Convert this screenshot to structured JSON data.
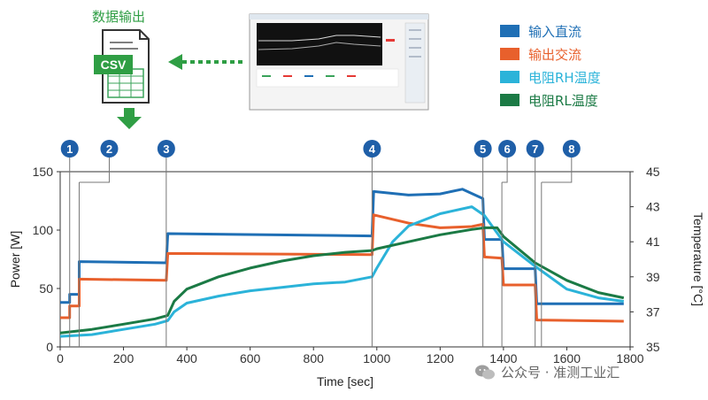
{
  "header": {
    "export_label": "数据输出",
    "csv_label": "CSV"
  },
  "legend": [
    {
      "label": "输入直流",
      "color": "#1f6fb5"
    },
    {
      "label": "输出交流",
      "color": "#e8602c"
    },
    {
      "label": "电阻RH温度",
      "color": "#2bb3d9"
    },
    {
      "label": "电阻RL温度",
      "color": "#1b7a45"
    }
  ],
  "watermark": "公众号 · 准测工业汇",
  "chart_data": {
    "type": "line",
    "xlabel": "Time [sec]",
    "ylabel_left": "Power [W]",
    "ylabel_right": "Temperature [°C]",
    "xlim": [
      0,
      1800
    ],
    "ylim_left": [
      0,
      150
    ],
    "ylim_right": [
      35,
      45
    ],
    "x_ticks": [
      0,
      200,
      400,
      600,
      800,
      1000,
      1200,
      1400,
      1600,
      1800
    ],
    "y_ticks_left": [
      0,
      50,
      100,
      150
    ],
    "y_ticks_right": [
      35,
      37,
      39,
      41,
      43,
      45
    ],
    "markers": [
      {
        "label": "1",
        "x": 30
      },
      {
        "label": "2",
        "x": 60
      },
      {
        "label": "3",
        "x": 335
      },
      {
        "label": "4",
        "x": 985
      },
      {
        "label": "5",
        "x": 1335
      },
      {
        "label": "6",
        "x": 1395
      },
      {
        "label": "7",
        "x": 1500
      },
      {
        "label": "8",
        "x": 1520
      }
    ],
    "series": [
      {
        "name": "输入直流",
        "axis": "left",
        "color": "#1f6fb5",
        "points": [
          [
            0,
            38
          ],
          [
            30,
            38
          ],
          [
            30,
            45
          ],
          [
            60,
            45
          ],
          [
            60,
            73
          ],
          [
            335,
            72
          ],
          [
            340,
            97
          ],
          [
            985,
            95
          ],
          [
            990,
            133
          ],
          [
            1100,
            130
          ],
          [
            1200,
            131
          ],
          [
            1270,
            135
          ],
          [
            1335,
            127
          ],
          [
            1340,
            92
          ],
          [
            1395,
            92
          ],
          [
            1400,
            67
          ],
          [
            1500,
            67
          ],
          [
            1505,
            37
          ],
          [
            1780,
            37
          ]
        ]
      },
      {
        "name": "输出交流",
        "axis": "left",
        "color": "#e8602c",
        "points": [
          [
            0,
            25
          ],
          [
            30,
            25
          ],
          [
            30,
            35
          ],
          [
            60,
            35
          ],
          [
            60,
            58
          ],
          [
            335,
            57
          ],
          [
            340,
            80
          ],
          [
            985,
            79
          ],
          [
            990,
            113
          ],
          [
            1100,
            106
          ],
          [
            1200,
            102
          ],
          [
            1300,
            103
          ],
          [
            1335,
            105
          ],
          [
            1340,
            77
          ],
          [
            1395,
            76
          ],
          [
            1400,
            53
          ],
          [
            1500,
            53
          ],
          [
            1505,
            23
          ],
          [
            1780,
            22
          ]
        ]
      },
      {
        "name": "电阻RH温度",
        "axis": "right",
        "color": "#2bb3d9",
        "points": [
          [
            0,
            35.6
          ],
          [
            100,
            35.7
          ],
          [
            200,
            36.0
          ],
          [
            300,
            36.3
          ],
          [
            340,
            36.5
          ],
          [
            360,
            37.0
          ],
          [
            400,
            37.5
          ],
          [
            500,
            37.9
          ],
          [
            600,
            38.2
          ],
          [
            700,
            38.4
          ],
          [
            800,
            38.6
          ],
          [
            900,
            38.7
          ],
          [
            985,
            39.0
          ],
          [
            1000,
            39.5
          ],
          [
            1050,
            41.0
          ],
          [
            1100,
            41.9
          ],
          [
            1200,
            42.6
          ],
          [
            1300,
            43.0
          ],
          [
            1340,
            42.5
          ],
          [
            1400,
            41.0
          ],
          [
            1500,
            39.6
          ],
          [
            1600,
            38.3
          ],
          [
            1700,
            37.8
          ],
          [
            1780,
            37.6
          ]
        ]
      },
      {
        "name": "电阻RL温度",
        "axis": "right",
        "color": "#1b7a45",
        "points": [
          [
            0,
            35.8
          ],
          [
            100,
            36.0
          ],
          [
            200,
            36.3
          ],
          [
            300,
            36.6
          ],
          [
            340,
            36.8
          ],
          [
            360,
            37.6
          ],
          [
            400,
            38.3
          ],
          [
            500,
            39.0
          ],
          [
            600,
            39.5
          ],
          [
            700,
            39.9
          ],
          [
            800,
            40.2
          ],
          [
            900,
            40.4
          ],
          [
            985,
            40.5
          ],
          [
            1000,
            40.6
          ],
          [
            1100,
            41.0
          ],
          [
            1200,
            41.4
          ],
          [
            1300,
            41.7
          ],
          [
            1340,
            41.8
          ],
          [
            1380,
            41.8
          ],
          [
            1400,
            41.3
          ],
          [
            1500,
            39.8
          ],
          [
            1600,
            38.8
          ],
          [
            1700,
            38.1
          ],
          [
            1780,
            37.8
          ]
        ]
      }
    ]
  }
}
